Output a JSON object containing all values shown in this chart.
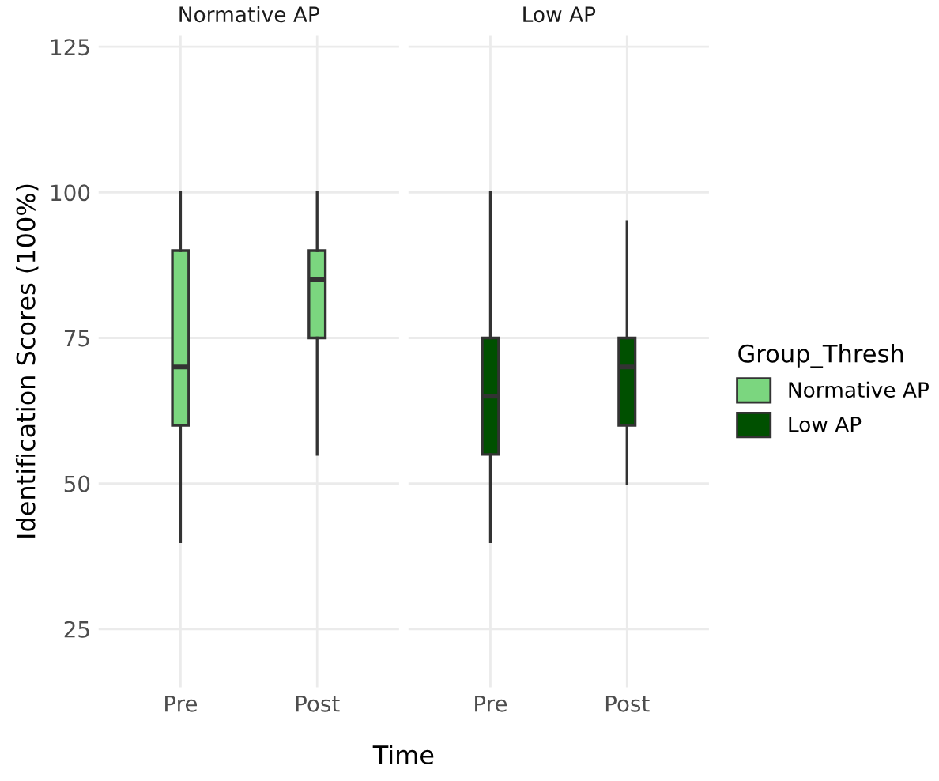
{
  "chart_data": [
    {
      "type": "box",
      "title": "Normative AP",
      "xlabel": "Time",
      "ylabel": "Identification Scores (100%)",
      "categories": [
        "Pre",
        "Post"
      ],
      "ylim": [
        15,
        127
      ],
      "yticks": [
        25,
        50,
        75,
        100,
        125
      ],
      "grid": true,
      "series": [
        {
          "name": "Normative AP",
          "color": "#7bd67f",
          "boxes": [
            {
              "low": 40,
              "q1": 60,
              "median": 70,
              "q3": 90,
              "high": 100
            },
            {
              "low": 55,
              "q1": 75,
              "median": 85,
              "q3": 90,
              "high": 100
            }
          ]
        }
      ]
    },
    {
      "type": "box",
      "title": "Low AP",
      "categories": [
        "Pre",
        "Post"
      ],
      "ylim": [
        15,
        127
      ],
      "tick_labels": "x",
      "grid": true,
      "legend": "right",
      "legend_title": "Group_Thresh",
      "series": [
        {
          "name": "Low AP",
          "color": "#005000",
          "boxes": [
            {
              "low": 40,
              "q1": 55,
              "median": 65,
              "q3": 75,
              "high": 100
            },
            {
              "low": 50,
              "q1": 60,
              "median": 70,
              "q3": 75,
              "high": 95
            }
          ]
        }
      ]
    }
  ]
}
